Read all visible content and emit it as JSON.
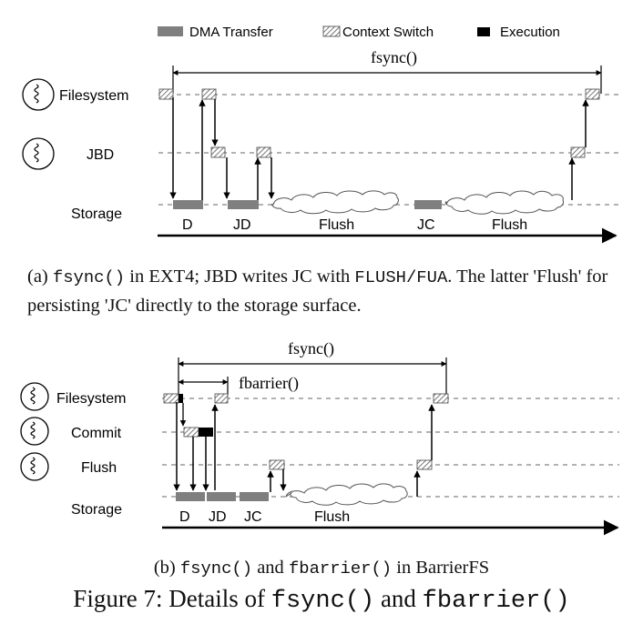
{
  "legend": {
    "dma": "DMA Transfer",
    "ctx": "Context Switch",
    "exec": "Execution"
  },
  "diagram_a": {
    "span_label": "fsync()",
    "lanes": {
      "filesystem": "Filesystem",
      "jbd": "JBD",
      "storage": "Storage"
    },
    "segments": [
      "D",
      "JD",
      "Flush",
      "JC",
      "Flush"
    ]
  },
  "caption_a": {
    "prefix": "(a) ",
    "code1": "fsync()",
    "mid": " in EXT4; JBD writes JC with ",
    "code2": "FLUSH/FUA",
    "suffix": ". The latter 'Flush' for persisting 'JC' directly to the storage surface."
  },
  "diagram_b": {
    "span_label": "fsync()",
    "inner_span_label": "fbarrier()",
    "lanes": {
      "filesystem": "Filesystem",
      "commit": "Commit",
      "flush": "Flush",
      "storage": "Storage"
    },
    "segments": [
      "D",
      "JD",
      "JC",
      "Flush"
    ]
  },
  "caption_b": {
    "prefix": "(b) ",
    "code1": "fsync()",
    "mid": " and ",
    "code2": "fbarrier()",
    "suffix": " in BarrierFS"
  },
  "figure_caption": {
    "prefix": "Figure 7: Details of ",
    "code1": "fsync()",
    "mid": " and ",
    "code2": "fbarrier()"
  }
}
